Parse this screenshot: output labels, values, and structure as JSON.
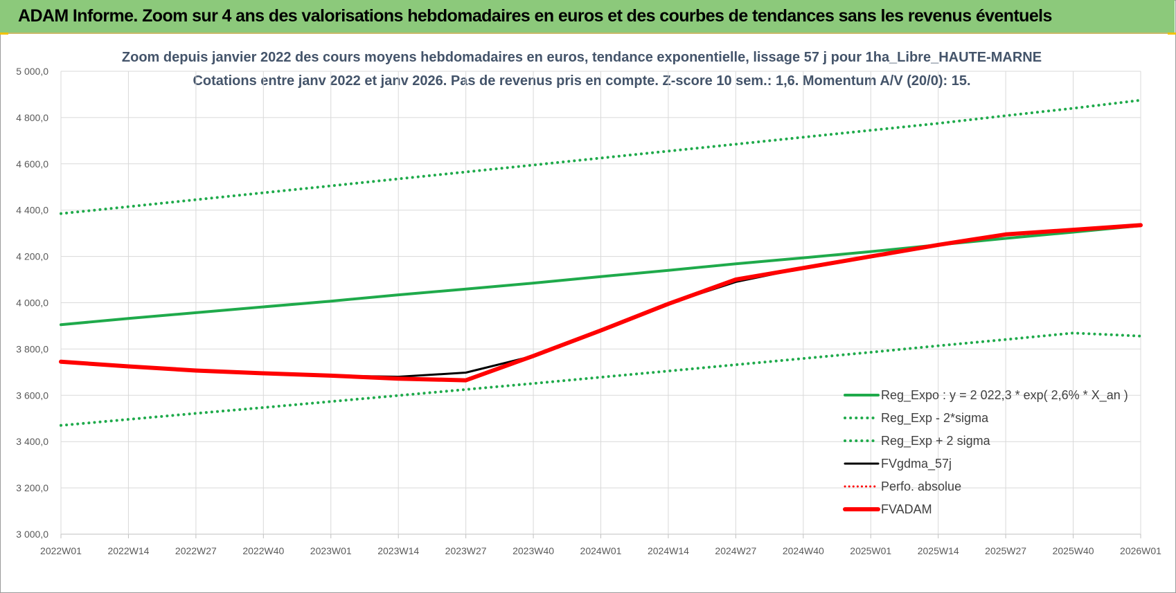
{
  "banner": {
    "title": "ADAM Informe. Zoom sur 4 ans des valorisations hebdomadaires en euros et des courbes de tendances sans les revenus éventuels"
  },
  "colors": {
    "banner": "#8cc97b",
    "trend": "#1faa4b",
    "black": "#000000",
    "red": "#ff0000",
    "title": "#44546a",
    "grid": "#d9d9d9"
  },
  "chart_data": {
    "type": "line",
    "title_line1": "Zoom depuis janvier 2022 des cours moyens hebdomadaires en euros, tendance exponentielle, lissage 57 j pour 1ha_Libre_HAUTE-MARNE",
    "title_line2": "Cotations entre janv 2022 et janv 2026. Pas de revenus pris en compte. Z-score 10 sem.: 1,6. Momentum A/V (20/0): 15.",
    "ylim": [
      3000,
      5000
    ],
    "yticks": [
      "3 000,0",
      "3 200,0",
      "3 400,0",
      "3 600,0",
      "3 800,0",
      "4 000,0",
      "4 200,0",
      "4 400,0",
      "4 600,0",
      "4 800,0",
      "5 000,0"
    ],
    "xticks": [
      "2022W01",
      "2022W14",
      "2022W27",
      "2022W40",
      "2023W01",
      "2023W14",
      "2023W27",
      "2023W40",
      "2024W01",
      "2024W14",
      "2024W27",
      "2024W40",
      "2025W01",
      "2025W14",
      "2025W27",
      "2025W40",
      "2026W01"
    ],
    "series": [
      {
        "name": "Reg_Expo : y = 2 022,3 * exp( 2,6% *  X_an )",
        "style": "solid-green",
        "values": [
          3905,
          3932,
          3957,
          3982,
          4007,
          4034,
          4059,
          4085,
          4113,
          4140,
          4168,
          4194,
          4221,
          4250,
          4278,
          4305,
          4333
        ]
      },
      {
        "name": "Reg_Exp - 2*sigma",
        "style": "dotted-green",
        "values": [
          3470,
          3496,
          3522,
          3547,
          3573,
          3599,
          3625,
          3651,
          3678,
          3705,
          3732,
          3759,
          3786,
          3814,
          3841,
          3869,
          3856
        ]
      },
      {
        "name": "Reg_Exp + 2 sigma",
        "style": "dotted-green",
        "values": [
          4385,
          4415,
          4445,
          4475,
          4505,
          4535,
          4565,
          4595,
          4625,
          4655,
          4685,
          4715,
          4745,
          4775,
          4808,
          4840,
          4875
        ]
      },
      {
        "name": "FVgdma_57j",
        "style": "solid-black",
        "values": [
          3745,
          3725,
          3707,
          3695,
          3685,
          3680,
          3698,
          3770,
          3880,
          3995,
          4090,
          4150,
          4200,
          4250,
          4295,
          4315,
          4335
        ]
      },
      {
        "name": "Perfo. absolue",
        "style": "dotted-red",
        "values": []
      },
      {
        "name": "FVADAM",
        "style": "solid-red",
        "values": [
          3745,
          3725,
          3707,
          3695,
          3685,
          3672,
          3665,
          3770,
          3880,
          3995,
          4100,
          4150,
          4200,
          4250,
          4295,
          4315,
          4335
        ]
      }
    ]
  }
}
